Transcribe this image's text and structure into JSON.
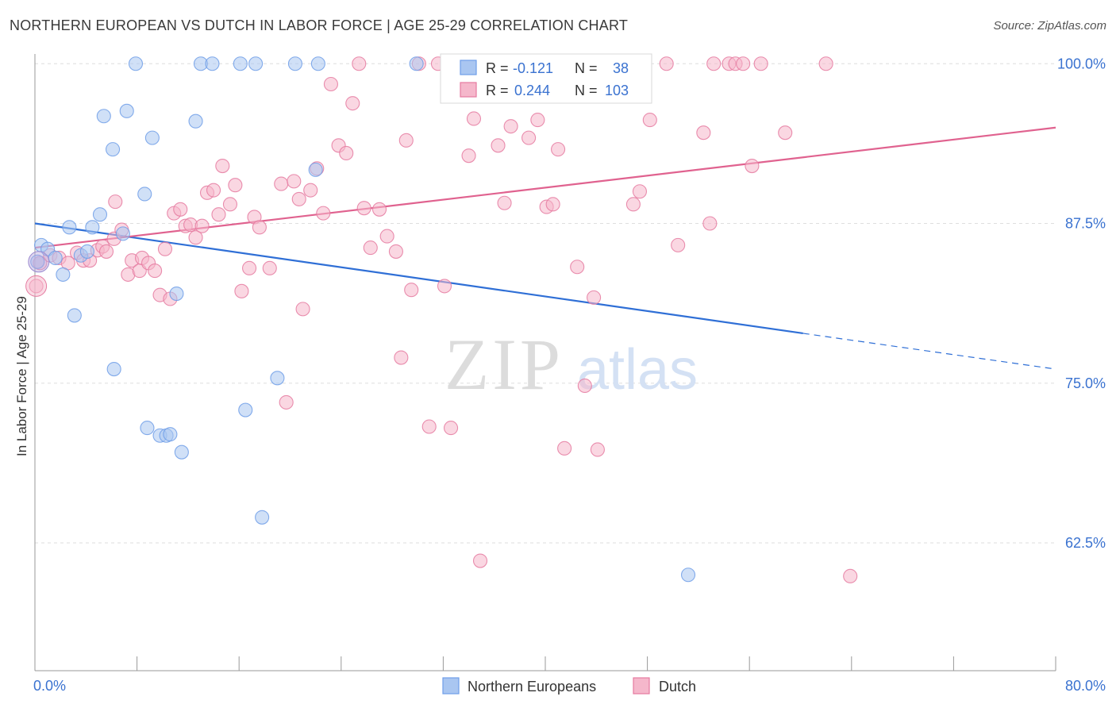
{
  "title": "NORTHERN EUROPEAN VS DUTCH IN LABOR FORCE | AGE 25-29 CORRELATION CHART",
  "source": "Source: ZipAtlas.com",
  "watermark": {
    "zip": "ZIP",
    "atlas": "atlas"
  },
  "chart_data": {
    "type": "scatter",
    "title": "NORTHERN EUROPEAN VS DUTCH IN LABOR FORCE | AGE 25-29 CORRELATION CHART",
    "xlabel": "",
    "ylabel": "In Labor Force | Age 25-29",
    "xlim": [
      0,
      80
    ],
    "ylim": [
      52.5,
      102.5
    ],
    "x_tick_labels": [
      "0.0%",
      "80.0%"
    ],
    "y_ticks": [
      {
        "value": 100,
        "label": "100.0%"
      },
      {
        "value": 87.5,
        "label": "87.5%"
      },
      {
        "value": 75,
        "label": "75.0%"
      },
      {
        "value": 62.5,
        "label": "62.5%"
      }
    ],
    "grid": true,
    "legend_placement": "top-center",
    "series": [
      {
        "name": "Northern Europeans",
        "color": "#6f9ee8",
        "fill": "#a9c6f1",
        "stats": {
          "r_label": "R =",
          "r": "-0.121",
          "n_label": "N =",
          "n": "38"
        },
        "trend": {
          "x0": 0,
          "y0": 87.5,
          "x1": 60.2,
          "y1": 78.9,
          "dash_x1": 80,
          "dash_y1": 76.1
        },
        "points": [
          [
            0.2,
            84.5
          ],
          [
            0.5,
            85.8
          ],
          [
            1.0,
            85.5
          ],
          [
            1.6,
            84.8
          ],
          [
            2.2,
            83.5
          ],
          [
            2.7,
            87.2
          ],
          [
            3.1,
            80.3
          ],
          [
            3.6,
            85.0
          ],
          [
            4.1,
            85.3
          ],
          [
            4.5,
            87.2
          ],
          [
            5.1,
            88.2
          ],
          [
            5.4,
            95.9
          ],
          [
            6.1,
            93.3
          ],
          [
            6.2,
            76.1
          ],
          [
            6.9,
            86.7
          ],
          [
            7.2,
            96.3
          ],
          [
            7.9,
            100.0
          ],
          [
            8.6,
            89.8
          ],
          [
            8.8,
            71.5
          ],
          [
            9.2,
            94.2
          ],
          [
            9.8,
            70.9
          ],
          [
            10.3,
            70.9
          ],
          [
            10.6,
            71.0
          ],
          [
            11.1,
            82.0
          ],
          [
            11.5,
            69.6
          ],
          [
            12.6,
            95.5
          ],
          [
            13.0,
            100.0
          ],
          [
            13.9,
            100.0
          ],
          [
            16.1,
            100.0
          ],
          [
            16.5,
            72.9
          ],
          [
            17.3,
            100.0
          ],
          [
            17.8,
            64.5
          ],
          [
            19.0,
            75.4
          ],
          [
            20.4,
            100.0
          ],
          [
            22.0,
            91.7
          ],
          [
            22.2,
            100.0
          ],
          [
            29.9,
            100.0
          ],
          [
            51.2,
            60.0
          ]
        ]
      },
      {
        "name": "Dutch",
        "color": "#e57aa0",
        "fill": "#f5b7cb",
        "stats": {
          "r_label": "R =",
          "r": "0.244",
          "n_label": "N =",
          "n": "103"
        },
        "trend": {
          "x0": 0,
          "y0": 85.6,
          "x1": 80,
          "y1": 95.0
        },
        "points": [
          [
            0.1,
            82.6
          ],
          [
            0.4,
            84.4
          ],
          [
            1.2,
            85.0
          ],
          [
            1.9,
            84.8
          ],
          [
            2.6,
            84.4
          ],
          [
            3.3,
            85.2
          ],
          [
            3.8,
            84.6
          ],
          [
            4.3,
            84.6
          ],
          [
            4.9,
            85.4
          ],
          [
            5.3,
            85.7
          ],
          [
            5.6,
            85.3
          ],
          [
            6.2,
            86.3
          ],
          [
            6.3,
            89.2
          ],
          [
            6.8,
            87.0
          ],
          [
            7.3,
            83.5
          ],
          [
            7.6,
            84.6
          ],
          [
            8.2,
            83.8
          ],
          [
            8.4,
            84.8
          ],
          [
            8.9,
            84.4
          ],
          [
            9.4,
            83.8
          ],
          [
            9.8,
            81.9
          ],
          [
            10.2,
            85.5
          ],
          [
            10.6,
            81.6
          ],
          [
            10.9,
            88.3
          ],
          [
            11.4,
            88.6
          ],
          [
            11.8,
            87.3
          ],
          [
            12.2,
            87.4
          ],
          [
            12.6,
            86.4
          ],
          [
            13.1,
            87.3
          ],
          [
            13.5,
            89.9
          ],
          [
            14.0,
            90.1
          ],
          [
            14.4,
            88.2
          ],
          [
            14.7,
            92.0
          ],
          [
            15.3,
            89.0
          ],
          [
            15.7,
            90.5
          ],
          [
            16.2,
            82.2
          ],
          [
            16.8,
            84.0
          ],
          [
            17.2,
            88.0
          ],
          [
            17.6,
            87.2
          ],
          [
            18.4,
            84.0
          ],
          [
            19.3,
            90.6
          ],
          [
            19.7,
            73.5
          ],
          [
            20.3,
            90.8
          ],
          [
            20.7,
            89.4
          ],
          [
            21.0,
            80.8
          ],
          [
            21.6,
            90.1
          ],
          [
            22.1,
            91.8
          ],
          [
            22.6,
            88.3
          ],
          [
            23.2,
            98.4
          ],
          [
            23.8,
            93.6
          ],
          [
            24.4,
            93.0
          ],
          [
            24.9,
            96.9
          ],
          [
            25.4,
            100.0
          ],
          [
            25.8,
            88.7
          ],
          [
            26.3,
            85.6
          ],
          [
            27.0,
            88.6
          ],
          [
            27.6,
            86.5
          ],
          [
            28.3,
            85.3
          ],
          [
            28.7,
            77.0
          ],
          [
            29.1,
            94.0
          ],
          [
            29.5,
            82.3
          ],
          [
            30.1,
            100.0
          ],
          [
            30.9,
            71.6
          ],
          [
            31.6,
            100.0
          ],
          [
            32.1,
            82.6
          ],
          [
            32.6,
            71.5
          ],
          [
            33.1,
            100.0
          ],
          [
            34.0,
            92.8
          ],
          [
            34.4,
            95.7
          ],
          [
            34.9,
            61.1
          ],
          [
            35.5,
            100.0
          ],
          [
            36.3,
            93.6
          ],
          [
            36.8,
            89.1
          ],
          [
            37.3,
            95.1
          ],
          [
            38.2,
            100.0
          ],
          [
            38.7,
            94.2
          ],
          [
            39.4,
            95.6
          ],
          [
            40.1,
            88.8
          ],
          [
            40.6,
            89.0
          ],
          [
            41.0,
            93.3
          ],
          [
            41.5,
            69.9
          ],
          [
            42.5,
            84.1
          ],
          [
            43.1,
            74.8
          ],
          [
            43.8,
            81.7
          ],
          [
            44.1,
            69.8
          ],
          [
            45.0,
            100.0
          ],
          [
            45.4,
            100.0
          ],
          [
            46.9,
            89.0
          ],
          [
            47.4,
            90.0
          ],
          [
            48.2,
            95.6
          ],
          [
            49.5,
            100.0
          ],
          [
            50.4,
            85.8
          ],
          [
            52.4,
            94.6
          ],
          [
            52.9,
            87.5
          ],
          [
            53.2,
            100.0
          ],
          [
            54.4,
            100.0
          ],
          [
            54.9,
            100.0
          ],
          [
            55.5,
            100.0
          ],
          [
            56.2,
            92.0
          ],
          [
            56.9,
            100.0
          ],
          [
            58.8,
            94.6
          ],
          [
            62.0,
            100.0
          ],
          [
            63.9,
            59.9
          ]
        ]
      }
    ]
  }
}
